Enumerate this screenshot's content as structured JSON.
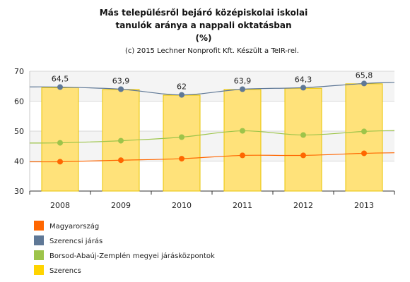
{
  "chart_data": {
    "type": "bar",
    "title_lines": [
      "Más településről bejáró középiskolai iskolai",
      "tanulók aránya a nappali oktatásban",
      "(%)"
    ],
    "subtitle": "(c) 2015 Lechner Nonprofit Kft. Készült a TeIR-rel.",
    "categories": [
      "2008",
      "2009",
      "2010",
      "2011",
      "2012",
      "2013"
    ],
    "ylim": [
      30,
      70
    ],
    "yticks": [
      30,
      40,
      50,
      60,
      70
    ],
    "grid": true,
    "legend_position": "bottom-left",
    "bars": {
      "name": "Szerencs",
      "values": [
        64.5,
        63.9,
        62.0,
        63.9,
        64.3,
        65.8
      ],
      "labels": [
        "64,5",
        "63,9",
        "62",
        "63,9",
        "64,3",
        "65,8"
      ],
      "color": "#ffe27a",
      "border_color": "#e8c400",
      "legend_color": "#ffd400"
    },
    "series": [
      {
        "name": "Magyarország",
        "values": [
          39.8,
          40.3,
          40.8,
          41.9,
          41.9,
          42.6
        ],
        "color": "#ff6600"
      },
      {
        "name": "Szerencsi járás",
        "values": [
          64.7,
          64.0,
          62.1,
          64.0,
          64.5,
          65.9
        ],
        "color": "#5f7896"
      },
      {
        "name": "Borsod-Abaúj-Zemplén megyei járásközpontok",
        "values": [
          46.1,
          46.8,
          48.0,
          50.1,
          48.7,
          49.9
        ],
        "color": "#9dc44a"
      }
    ],
    "legend_order": [
      "Magyarország",
      "Szerencsi járás",
      "Borsod-Abaúj-Zemplén megyei járásközpontok",
      "Szerencs"
    ]
  }
}
